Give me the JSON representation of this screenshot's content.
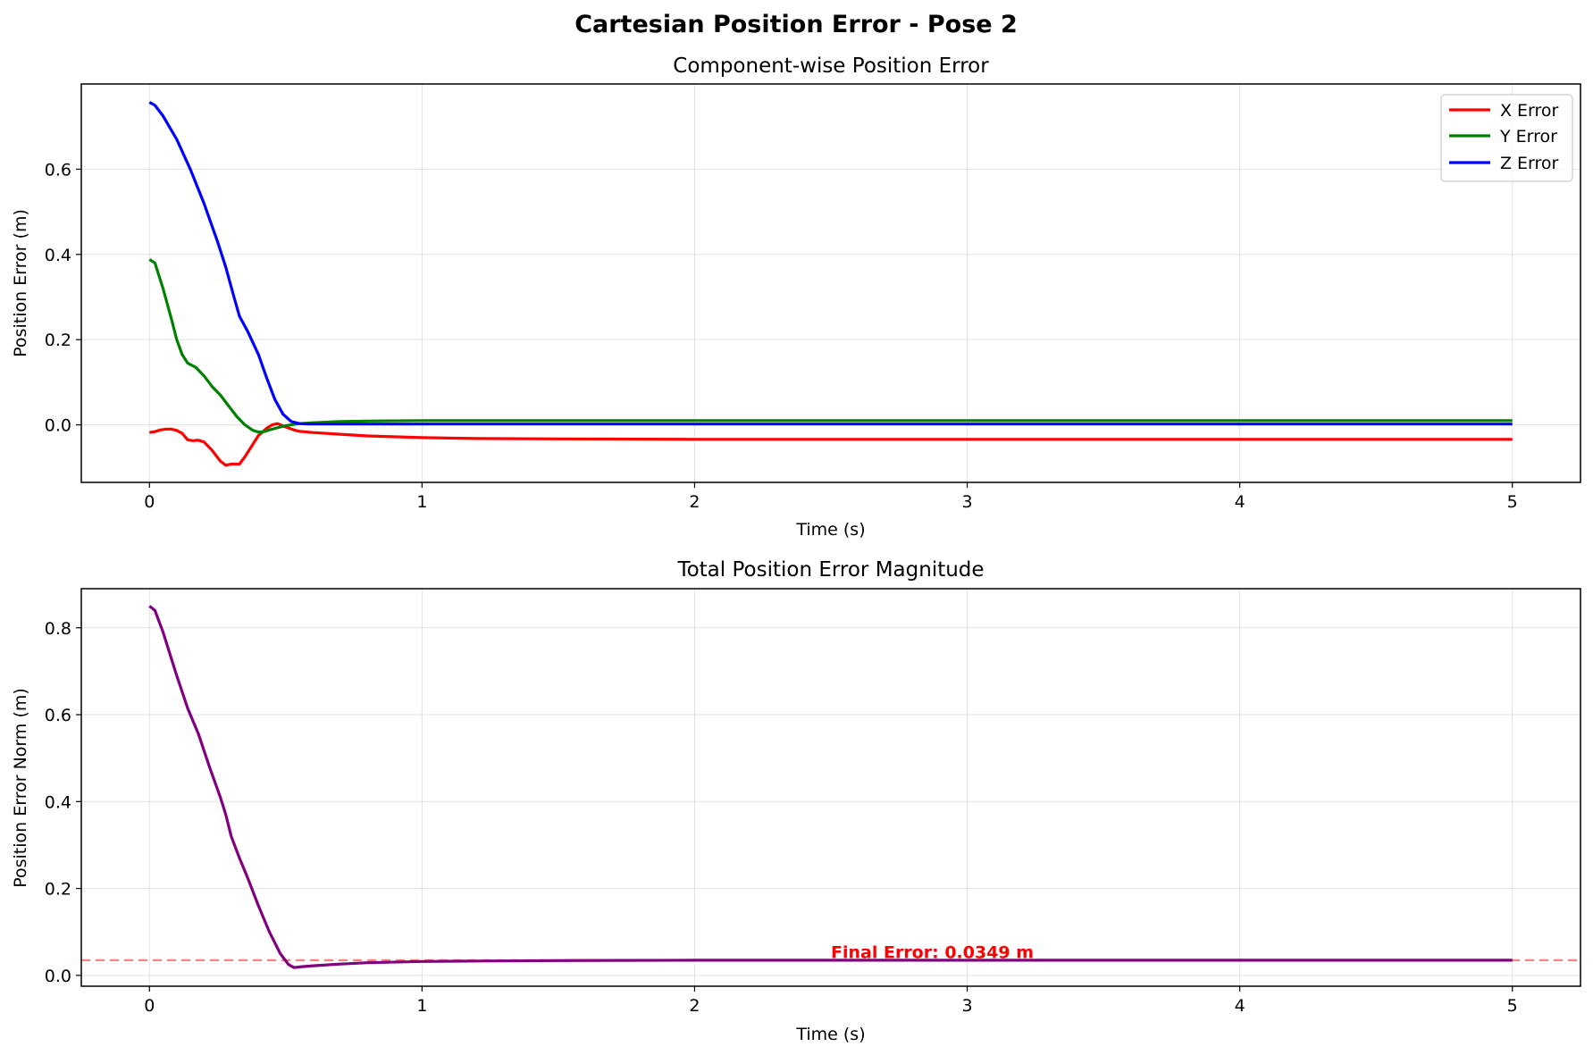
{
  "figure": {
    "suptitle": "Cartesian Position Error - Pose 2"
  },
  "chart_data": [
    {
      "type": "line",
      "title": "Component-wise Position Error",
      "xlabel": "Time (s)",
      "ylabel": "Position Error (m)",
      "xlim": [
        -0.25,
        5.25
      ],
      "ylim": [
        -0.135,
        0.8
      ],
      "xticks": [
        0,
        1,
        2,
        3,
        4,
        5
      ],
      "yticks": [
        0.0,
        0.2,
        0.4,
        0.6
      ],
      "xtick_labels": [
        "0",
        "1",
        "2",
        "3",
        "4",
        "5"
      ],
      "ytick_labels": [
        "0.0",
        "0.2",
        "0.4",
        "0.6"
      ],
      "grid": true,
      "legend": "upper right",
      "series": [
        {
          "name": "X Error",
          "color": "#ff0000",
          "x": [
            0,
            0.02,
            0.04,
            0.06,
            0.08,
            0.1,
            0.12,
            0.14,
            0.16,
            0.18,
            0.2,
            0.23,
            0.26,
            0.28,
            0.3,
            0.33,
            0.35,
            0.38,
            0.4,
            0.43,
            0.45,
            0.47,
            0.5,
            0.53,
            0.55,
            0.6,
            0.7,
            0.8,
            1.0,
            1.2,
            1.5,
            2.0,
            3.0,
            4.0,
            5.0
          ],
          "y": [
            -0.018,
            -0.016,
            -0.012,
            -0.01,
            -0.01,
            -0.013,
            -0.02,
            -0.035,
            -0.037,
            -0.036,
            -0.04,
            -0.06,
            -0.085,
            -0.095,
            -0.092,
            -0.092,
            -0.075,
            -0.045,
            -0.025,
            -0.008,
            0.0,
            0.003,
            -0.005,
            -0.012,
            -0.015,
            -0.018,
            -0.022,
            -0.026,
            -0.03,
            -0.032,
            -0.033,
            -0.034,
            -0.034,
            -0.034,
            -0.034
          ]
        },
        {
          "name": "Y Error",
          "color": "#008000",
          "x": [
            0,
            0.02,
            0.05,
            0.08,
            0.1,
            0.12,
            0.14,
            0.17,
            0.2,
            0.23,
            0.26,
            0.29,
            0.32,
            0.35,
            0.38,
            0.4,
            0.42,
            0.45,
            0.48,
            0.5,
            0.53,
            0.55,
            0.6,
            0.7,
            0.8,
            1.0,
            1.5,
            2.0,
            3.0,
            4.0,
            5.0
          ],
          "y": [
            0.388,
            0.38,
            0.32,
            0.25,
            0.2,
            0.165,
            0.145,
            0.135,
            0.115,
            0.09,
            0.07,
            0.045,
            0.02,
            0.0,
            -0.013,
            -0.017,
            -0.016,
            -0.01,
            -0.005,
            -0.002,
            0.001,
            0.003,
            0.005,
            0.008,
            0.009,
            0.01,
            0.01,
            0.01,
            0.01,
            0.01,
            0.01
          ]
        },
        {
          "name": "Z Error",
          "color": "#0000ff",
          "x": [
            0,
            0.02,
            0.05,
            0.1,
            0.15,
            0.2,
            0.25,
            0.28,
            0.31,
            0.33,
            0.36,
            0.4,
            0.43,
            0.46,
            0.49,
            0.52,
            0.55,
            0.58,
            0.62,
            0.7,
            0.8,
            1.0,
            1.5,
            2.0,
            3.0,
            4.0,
            5.0
          ],
          "y": [
            0.757,
            0.75,
            0.725,
            0.67,
            0.6,
            0.52,
            0.43,
            0.37,
            0.3,
            0.255,
            0.22,
            0.165,
            0.11,
            0.06,
            0.025,
            0.008,
            0.003,
            0.002,
            0.002,
            0.002,
            0.002,
            0.002,
            0.002,
            0.002,
            0.002,
            0.002,
            0.002
          ]
        }
      ]
    },
    {
      "type": "line",
      "title": "Total Position Error Magnitude",
      "xlabel": "Time (s)",
      "ylabel": "Position Error Norm (m)",
      "xlim": [
        -0.25,
        5.25
      ],
      "ylim": [
        -0.025,
        0.89
      ],
      "xticks": [
        0,
        1,
        2,
        3,
        4,
        5
      ],
      "yticks": [
        0.0,
        0.2,
        0.4,
        0.6,
        0.8
      ],
      "xtick_labels": [
        "0",
        "1",
        "2",
        "3",
        "4",
        "5"
      ],
      "ytick_labels": [
        "0.0",
        "0.2",
        "0.4",
        "0.6",
        "0.8"
      ],
      "grid": true,
      "series": [
        {
          "color": "#800080",
          "x": [
            0,
            0.02,
            0.05,
            0.1,
            0.14,
            0.18,
            0.22,
            0.26,
            0.28,
            0.3,
            0.33,
            0.36,
            0.4,
            0.44,
            0.48,
            0.51,
            0.53,
            0.56,
            0.6,
            0.7,
            0.8,
            1.0,
            1.2,
            1.5,
            2.0,
            3.0,
            4.0,
            5.0
          ],
          "y": [
            0.85,
            0.84,
            0.79,
            0.69,
            0.615,
            0.555,
            0.48,
            0.41,
            0.37,
            0.32,
            0.27,
            0.225,
            0.16,
            0.1,
            0.05,
            0.025,
            0.018,
            0.02,
            0.022,
            0.026,
            0.029,
            0.032,
            0.033,
            0.034,
            0.0349,
            0.0349,
            0.0349,
            0.0349
          ]
        }
      ],
      "hline": {
        "y": 0.0349,
        "color": "#ff0000",
        "style": "dashed",
        "alpha": 0.5
      },
      "annotation": {
        "text": "Final Error: 0.0349 m",
        "x": 2.5,
        "y": 0.04,
        "color": "#ff0000"
      }
    }
  ]
}
